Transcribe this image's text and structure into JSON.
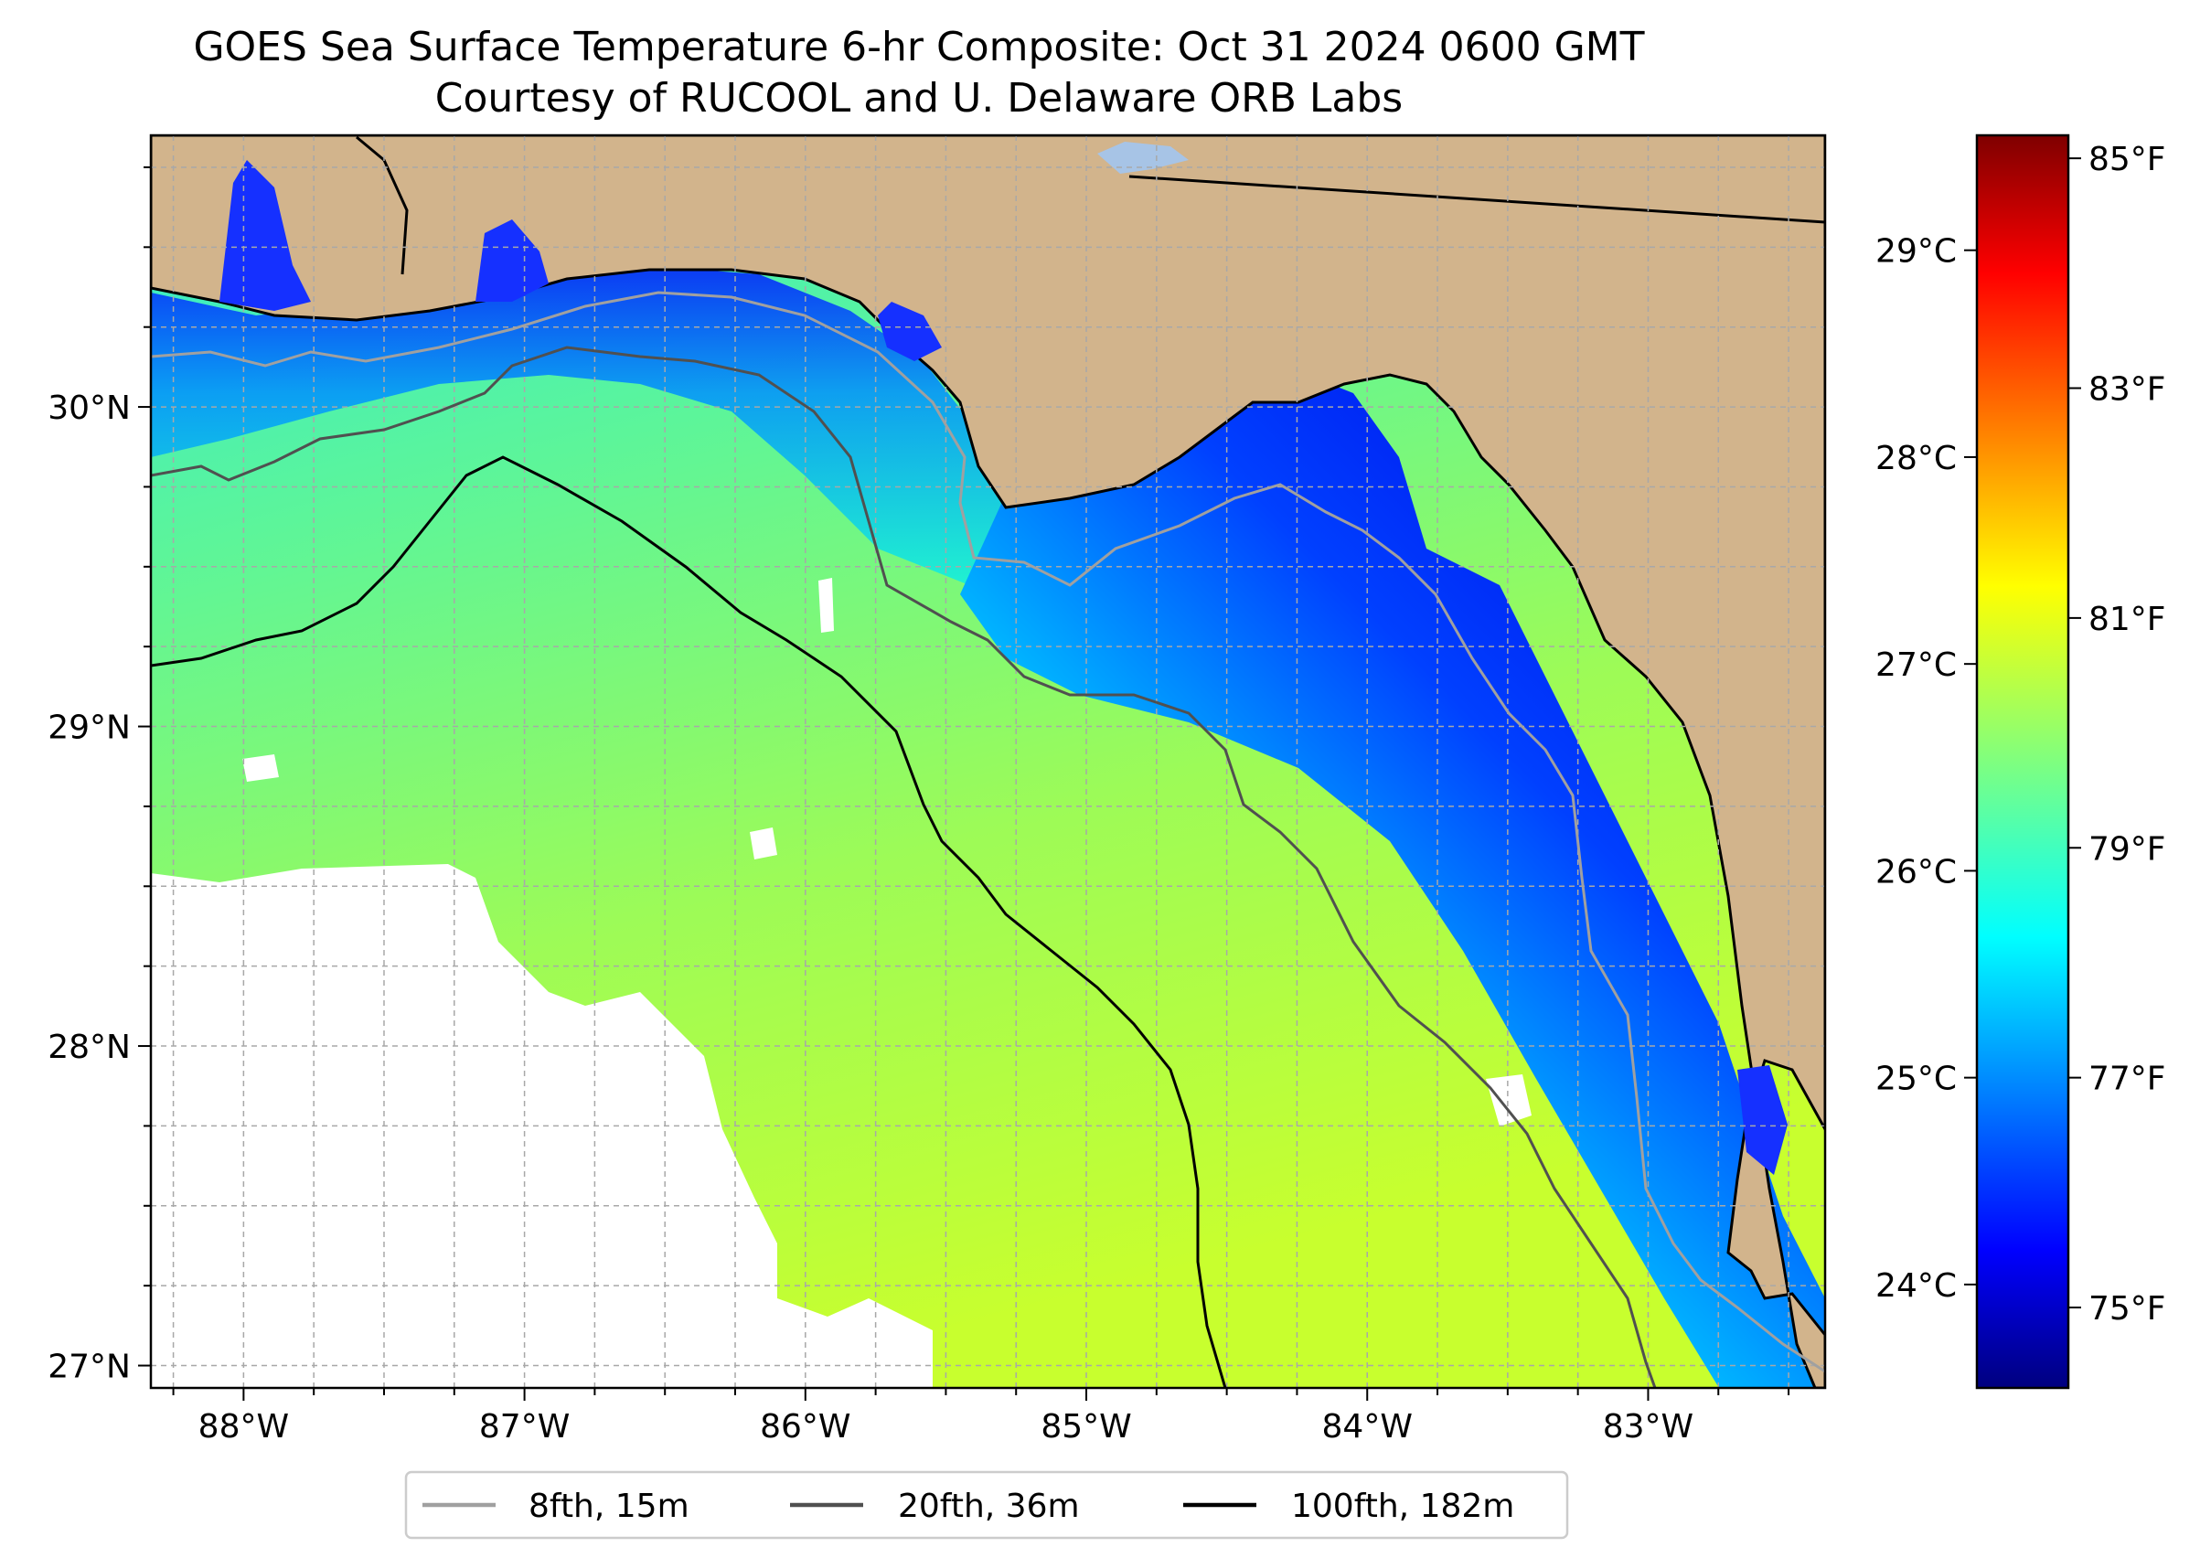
{
  "title": {
    "line1": "GOES Sea Surface Temperature 6-hr Composite: Oct 31 2024 0600 GMT",
    "line2": "Courtesy of RUCOOL and U. Delaware ORB Labs"
  },
  "map": {
    "lon_range": [
      -88.33,
      -82.37
    ],
    "lat_range": [
      26.93,
      30.85
    ],
    "lon_ticks": [
      {
        "value": -88,
        "label": "88°W"
      },
      {
        "value": -87,
        "label": "87°W"
      },
      {
        "value": -86,
        "label": "86°W"
      },
      {
        "value": -85,
        "label": "85°W"
      },
      {
        "value": -84,
        "label": "84°W"
      },
      {
        "value": -83,
        "label": "83°W"
      }
    ],
    "lat_ticks": [
      {
        "value": 30,
        "label": "30°N"
      },
      {
        "value": 29,
        "label": "29°N"
      },
      {
        "value": 28,
        "label": "28°N"
      },
      {
        "value": 27,
        "label": "27°N"
      }
    ],
    "colors": {
      "land": "#d2b48c",
      "no_data": "#ffffff",
      "grid": "#a8a8a8"
    }
  },
  "legend": {
    "items": [
      {
        "label": "8fth, 15m",
        "color": "#a0a0a0"
      },
      {
        "label": "20fth, 36m",
        "color": "#505050"
      },
      {
        "label": "100fth, 182m",
        "color": "#000000"
      }
    ]
  },
  "colorbar": {
    "colormap": "jet",
    "range_f": [
      74.3,
      85.2
    ],
    "celsius_ticks": [
      {
        "value": 24,
        "label": "24°C"
      },
      {
        "value": 25,
        "label": "25°C"
      },
      {
        "value": 26,
        "label": "26°C"
      },
      {
        "value": 27,
        "label": "27°C"
      },
      {
        "value": 28,
        "label": "28°C"
      },
      {
        "value": 29,
        "label": "29°C"
      }
    ],
    "fahrenheit_ticks": [
      {
        "value": 75,
        "label": "75°F"
      },
      {
        "value": 77,
        "label": "77°F"
      },
      {
        "value": 79,
        "label": "79°F"
      },
      {
        "value": 81,
        "label": "81°F"
      },
      {
        "value": 83,
        "label": "83°F"
      },
      {
        "value": 85,
        "label": "85°F"
      }
    ]
  }
}
